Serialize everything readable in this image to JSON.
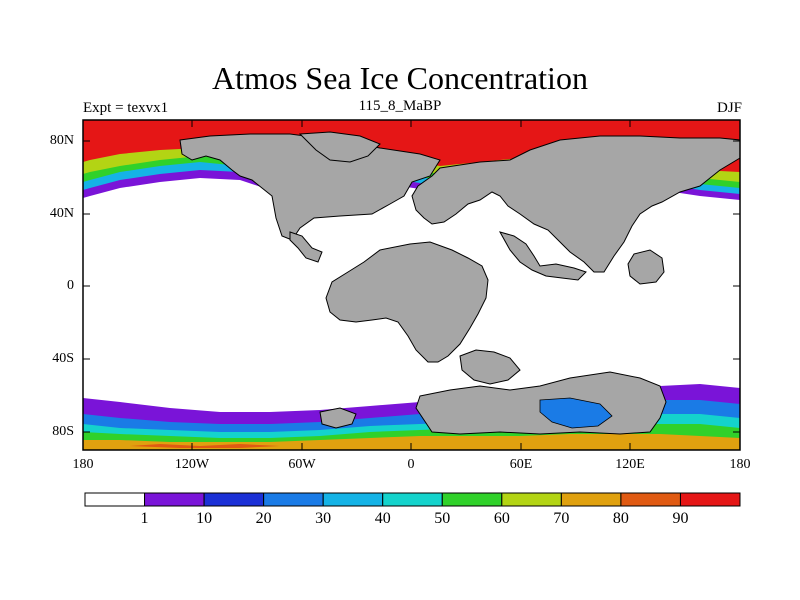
{
  "title": "Atmos Sea Ice Concentration",
  "subtitle_left": "Expt = texvx1",
  "subtitle_center": "115_8_MaBP",
  "subtitle_right": "DJF",
  "lat_ticks": [
    "80N",
    "40N",
    "0",
    "40S",
    "80S"
  ],
  "lon_ticks": [
    "180",
    "120W",
    "60W",
    "0",
    "60E",
    "120E",
    "180"
  ],
  "colors": {
    "land": "#a6a6a6",
    "ocean": "#ffffff",
    "bins": [
      "#ffffff",
      "#7a14d8",
      "#1b30d6",
      "#1a7be6",
      "#15b3e6",
      "#14d3cc",
      "#30d12a",
      "#b3d414",
      "#e0a10f",
      "#e05a12",
      "#e51616"
    ]
  },
  "colorbar": {
    "levels": [
      "1",
      "10",
      "20",
      "30",
      "40",
      "50",
      "60",
      "70",
      "80",
      "90"
    ]
  }
}
